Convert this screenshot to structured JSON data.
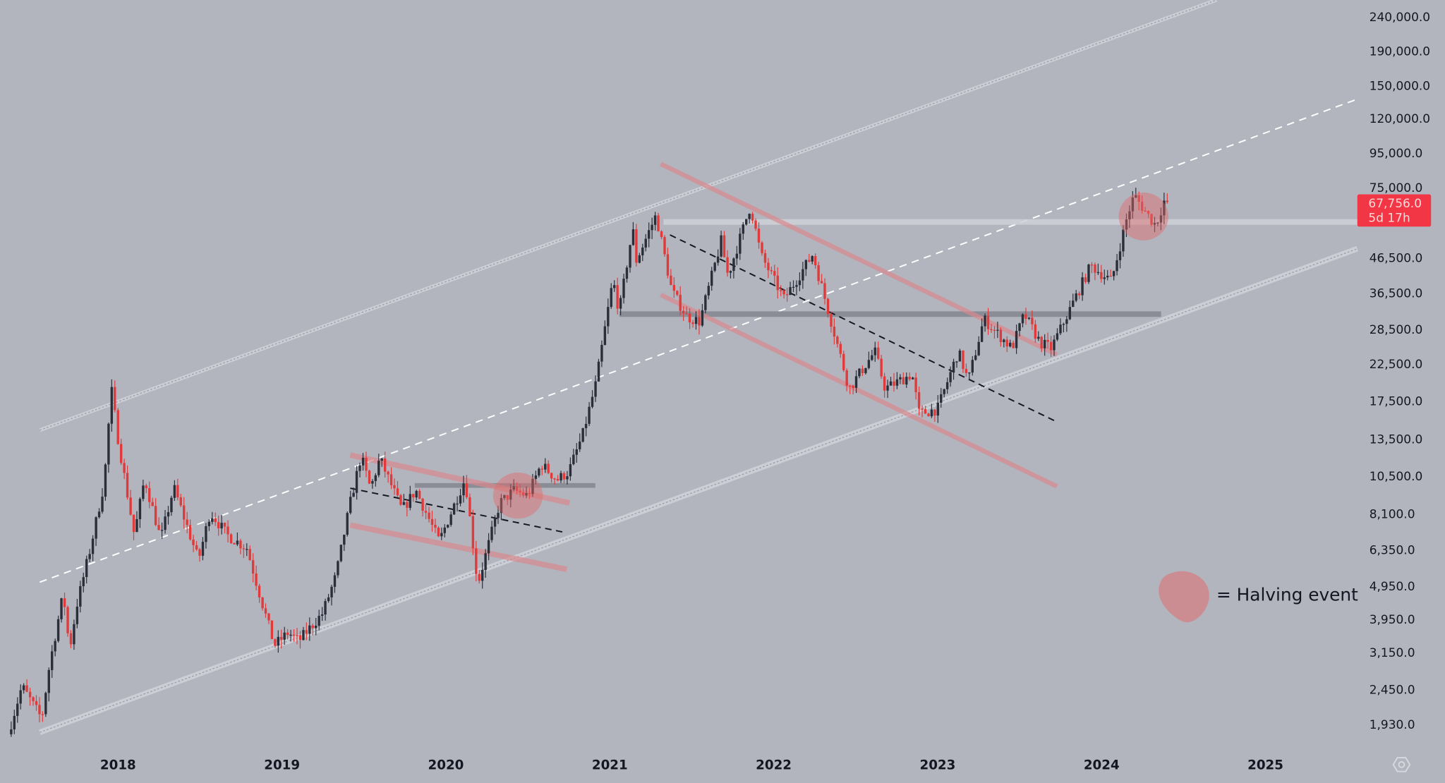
{
  "chart_data": {
    "type": "candlestick",
    "title": "",
    "xlabel": "",
    "ylabel": "",
    "y_scale": "log",
    "ylim": [
      1700,
      300000
    ],
    "grid": false,
    "candle_interval": "weekly",
    "colors": {
      "background": "#b2b5be",
      "up": "#2a2e39",
      "down": "#e03a3a",
      "last_price": "#f23645",
      "halving": "#e06b6b"
    },
    "x_ticks": [
      "2018",
      "2019",
      "2020",
      "2021",
      "2022",
      "2023",
      "2024",
      "2025"
    ],
    "y_ticks": [
      "240,000.0",
      "190,000.0",
      "150,000.0",
      "120,000.0",
      "95,000.0",
      "75,000.0",
      "46,500.0",
      "36,500.0",
      "28,500.0",
      "22,500.0",
      "17,500.0",
      "13,500.0",
      "10,500.0",
      "8,100.0",
      "6,350.0",
      "4,950.0",
      "3,950.0",
      "3,150.0",
      "2,450.0",
      "1,930.0"
    ],
    "last_price": {
      "value": "67,756.0",
      "countdown": "5d 17h"
    },
    "legend": {
      "label": "= Halving event",
      "placement": "bottom-right"
    },
    "price_path": [
      [
        "2017-05-01",
        1800
      ],
      [
        "2017-06-01",
        2500
      ],
      [
        "2017-07-15",
        2000
      ],
      [
        "2017-08-01",
        2870
      ],
      [
        "2017-09-01",
        4700
      ],
      [
        "2017-09-15",
        3200
      ],
      [
        "2017-10-01",
        4340
      ],
      [
        "2017-11-01",
        6450
      ],
      [
        "2017-12-01",
        10000
      ],
      [
        "2017-12-17",
        19000
      ],
      [
        "2018-01-01",
        13500
      ],
      [
        "2018-02-06",
        7000
      ],
      [
        "2018-03-01",
        10300
      ],
      [
        "2018-04-06",
        6800
      ],
      [
        "2018-05-05",
        9700
      ],
      [
        "2018-06-29",
        5900
      ],
      [
        "2018-07-25",
        8200
      ],
      [
        "2018-09-01",
        7000
      ],
      [
        "2018-10-15",
        6400
      ],
      [
        "2018-11-20",
        4300
      ],
      [
        "2018-12-15",
        3300
      ],
      [
        "2019-01-15",
        3600
      ],
      [
        "2019-02-07",
        3400
      ],
      [
        "2019-04-01",
        4100
      ],
      [
        "2019-05-01",
        5300
      ],
      [
        "2019-06-01",
        8600
      ],
      [
        "2019-06-26",
        12000
      ],
      [
        "2019-07-17",
        9600
      ],
      [
        "2019-08-07",
        11800
      ],
      [
        "2019-09-25",
        8300
      ],
      [
        "2019-10-26",
        9500
      ],
      [
        "2019-12-17",
        6700
      ],
      [
        "2020-02-13",
        10300
      ],
      [
        "2020-03-12",
        5000
      ],
      [
        "2020-04-30",
        8700
      ],
      [
        "2020-06-01",
        9500
      ],
      [
        "2020-07-01",
        9140
      ],
      [
        "2020-08-01",
        11350
      ],
      [
        "2020-09-05",
        10200
      ],
      [
        "2020-10-01",
        10780
      ],
      [
        "2020-11-01",
        13800
      ],
      [
        "2020-12-01",
        19700
      ],
      [
        "2021-01-08",
        40000
      ],
      [
        "2021-01-22",
        32000
      ],
      [
        "2021-02-21",
        57000
      ],
      [
        "2021-02-28",
        45200
      ],
      [
        "2021-04-14",
        62000
      ],
      [
        "2021-05-19",
        37000
      ],
      [
        "2021-06-22",
        31000
      ],
      [
        "2021-07-20",
        30000
      ],
      [
        "2021-09-06",
        52000
      ],
      [
        "2021-09-21",
        41000
      ],
      [
        "2021-11-10",
        66000
      ],
      [
        "2021-12-04",
        47000
      ],
      [
        "2022-01-24",
        35000
      ],
      [
        "2022-03-29",
        47500
      ],
      [
        "2022-05-12",
        29000
      ],
      [
        "2022-06-18",
        19000
      ],
      [
        "2022-08-14",
        24500
      ],
      [
        "2022-09-06",
        19000
      ],
      [
        "2022-11-05",
        21000
      ],
      [
        "2022-11-21",
        16000
      ],
      [
        "2023-01-01",
        16550
      ],
      [
        "2023-02-16",
        24500
      ],
      [
        "2023-03-10",
        20000
      ],
      [
        "2023-04-14",
        30500
      ],
      [
        "2023-06-15",
        25000
      ],
      [
        "2023-07-13",
        31500
      ],
      [
        "2023-08-17",
        26000
      ],
      [
        "2023-09-11",
        25000
      ],
      [
        "2023-10-31",
        34500
      ],
      [
        "2023-12-08",
        44000
      ],
      [
        "2024-01-23",
        39500
      ],
      [
        "2024-02-28",
        62000
      ],
      [
        "2024-03-14",
        71000
      ],
      [
        "2024-04-17",
        61000
      ],
      [
        "2024-05-01",
        58000
      ],
      [
        "2024-05-21",
        69000
      ],
      [
        "2024-05-27",
        67756
      ]
    ]
  }
}
